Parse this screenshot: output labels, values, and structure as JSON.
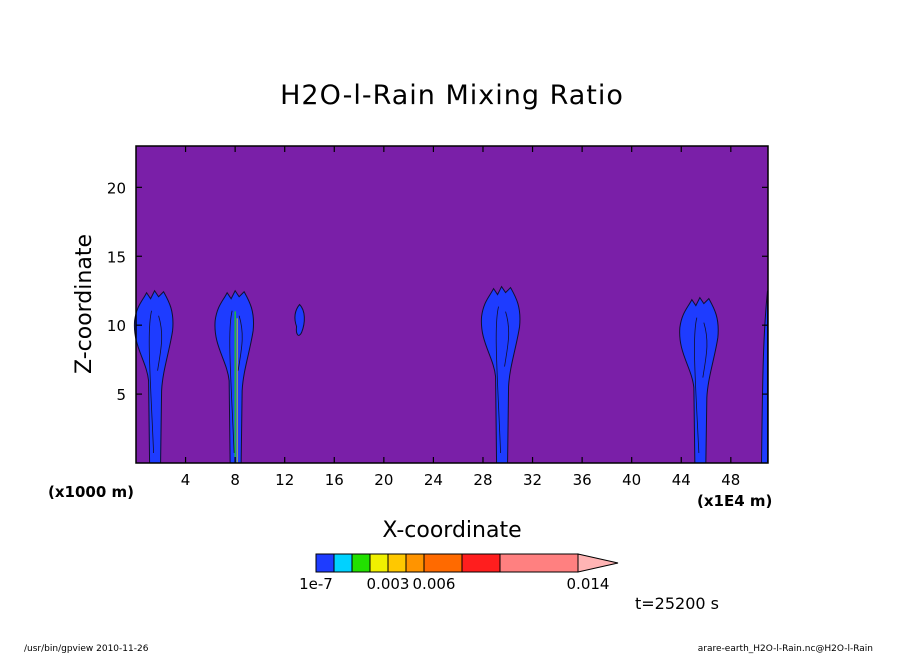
{
  "chart_data": {
    "type": "heatmap",
    "title": "H2O-l-Rain Mixing Ratio",
    "xlabel": "X-coordinate",
    "ylabel": "Z-coordinate",
    "x_unit_left": "(x1000 m)",
    "x_unit_right": "(x1E4 m)",
    "xlim": [
      0,
      51
    ],
    "ylim": [
      0,
      23
    ],
    "x_ticks": [
      4,
      8,
      12,
      16,
      20,
      24,
      28,
      32,
      36,
      40,
      44,
      48
    ],
    "y_ticks": [
      5,
      10,
      15,
      20
    ],
    "background_level_color": "#7a1fa8",
    "contour_levels": [
      "1e-7",
      "0.003",
      "0.006",
      "0.014"
    ],
    "colorbar_colors": [
      "#1e3cff",
      "#00d2ff",
      "#22e000",
      "#f0f000",
      "#ffc800",
      "#ff9400",
      "#ff6a00",
      "#ff1e1e",
      "#ff8080",
      "#ffb4b4"
    ],
    "features": [
      {
        "x_center": 1.5,
        "top": 12.5
      },
      {
        "x_center": 8.0,
        "top": 12.5
      },
      {
        "x_center": 13.2,
        "top": 11.5
      },
      {
        "x_center": 29.5,
        "top": 12.8
      },
      {
        "x_center": 45.5,
        "top": 12.0
      },
      {
        "x_center": 50.8,
        "top": 12.5
      }
    ],
    "time_label": "t=25200 s"
  },
  "footer": {
    "left": "/usr/bin/gpview  2010-11-26",
    "right": "arare-earth_H2O-l-Rain.nc@H2O-l-Rain"
  }
}
